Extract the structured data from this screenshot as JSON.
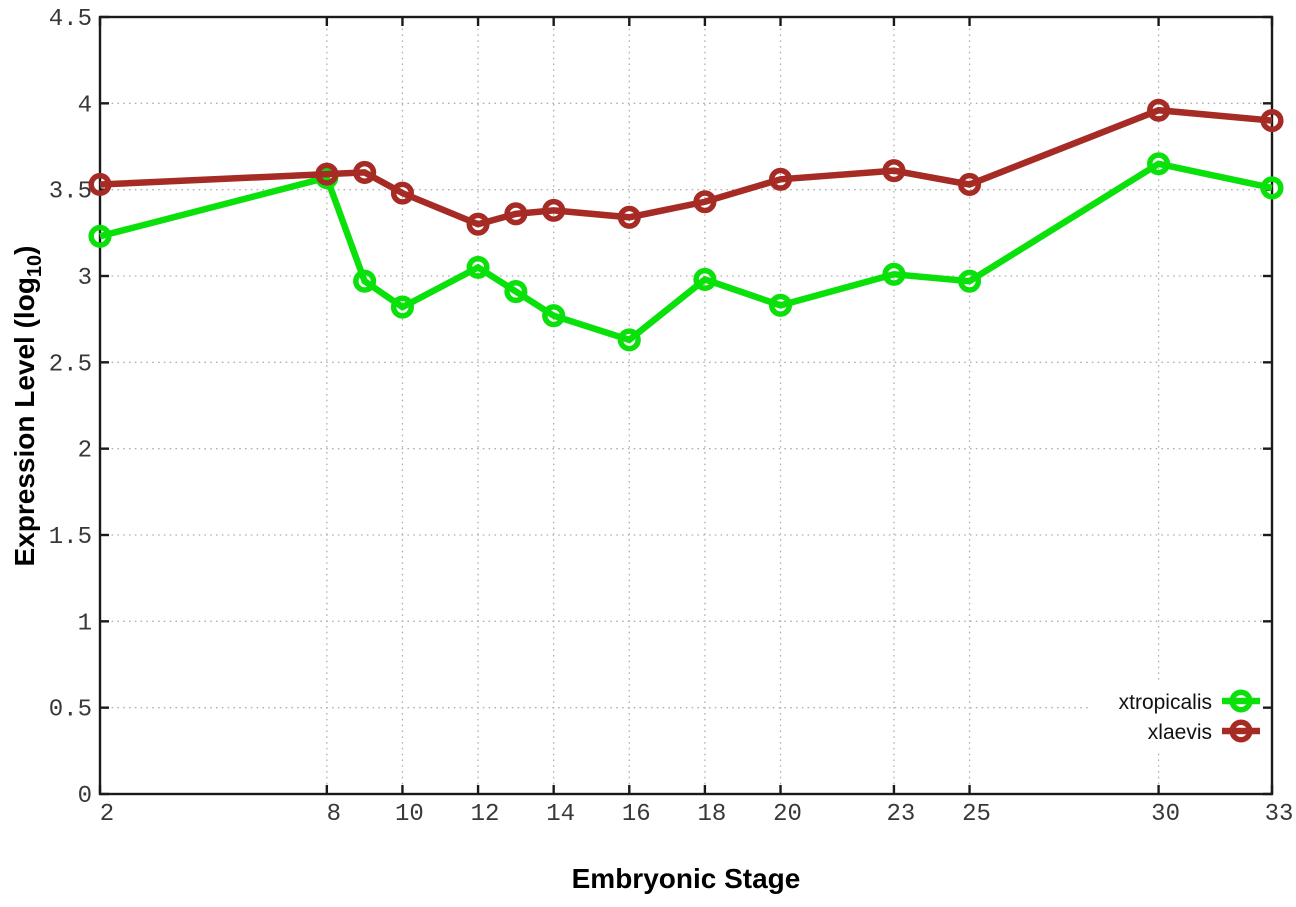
{
  "figure": {
    "background": "#ffffff"
  },
  "chart_data": {
    "type": "line",
    "title": "",
    "xlabel": "Embryonic Stage",
    "ylabel": "Expression Level (log10)",
    "ylabel_parts": {
      "pre": "Expression Level (log",
      "sub": "10",
      "post": ")"
    },
    "x": [
      2,
      8,
      9,
      10,
      12,
      13,
      14,
      16,
      18,
      20,
      23,
      25,
      30,
      33
    ],
    "xlim": [
      2,
      33
    ],
    "ylim": [
      0,
      4.5
    ],
    "xticks": [
      2,
      8,
      10,
      12,
      14,
      16,
      18,
      20,
      23,
      25,
      30,
      33
    ],
    "xtick_labels": [
      "2",
      "8",
      "10",
      "12",
      "14",
      "16",
      "18",
      "20",
      "23",
      "25",
      "30",
      "33"
    ],
    "yticks": [
      0,
      0.5,
      1,
      1.5,
      2,
      2.5,
      3,
      3.5,
      4,
      4.5
    ],
    "ytick_labels": [
      "0",
      "0.5",
      "1",
      "1.5",
      "2",
      "2.5",
      "3",
      "3.5",
      "4",
      "4.5"
    ],
    "grid": true,
    "legend_position": "inside-bottom-right",
    "series": [
      {
        "name": "xtropicalis",
        "color": "#0ae00a",
        "values": [
          3.23,
          3.57,
          2.97,
          2.82,
          3.05,
          2.91,
          2.77,
          2.63,
          2.98,
          2.83,
          3.01,
          2.97,
          3.65,
          3.51
        ]
      },
      {
        "name": "xlaevis",
        "color": "#a62b25",
        "values": [
          3.53,
          3.59,
          3.6,
          3.48,
          3.3,
          3.36,
          3.38,
          3.34,
          3.43,
          3.56,
          3.61,
          3.53,
          3.96,
          3.9
        ]
      }
    ],
    "colors": {
      "grid": "#b0b0b0",
      "axis": "#1a1a1a",
      "tick_text": "#383838"
    }
  }
}
